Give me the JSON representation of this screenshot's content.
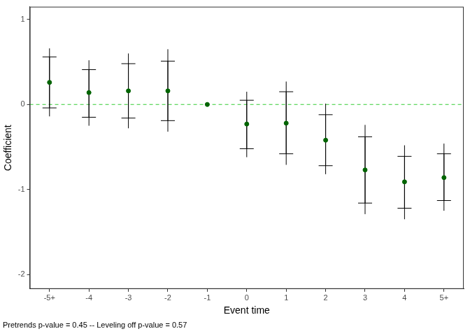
{
  "chart_data": {
    "type": "errorbar",
    "annotation": "Pretrends p-value = 0.45 -- Leveling off p-value = 0.57",
    "x_label": "Event time",
    "y_label": "Coefficient",
    "categories": [
      "-5+",
      "-4",
      "-3",
      "-2",
      "-1",
      "0",
      "1",
      "2",
      "3",
      "4",
      "5+"
    ],
    "values": [
      0.26,
      0.14,
      0.16,
      0.16,
      0,
      -0.23,
      -0.22,
      -0.42,
      -0.77,
      -0.91,
      -0.86
    ],
    "color": "#006400",
    "error_bars": {
      "inner": {
        "low": [
          -0.04,
          -0.15,
          -0.16,
          -0.19,
          null,
          -0.52,
          -0.58,
          -0.72,
          -1.16,
          -1.22,
          -1.13
        ],
        "high": [
          0.56,
          0.41,
          0.48,
          0.51,
          null,
          0.05,
          0.15,
          -0.12,
          -0.38,
          -0.61,
          -0.58
        ]
      },
      "outer": {
        "low": [
          -0.14,
          -0.25,
          -0.28,
          -0.32,
          null,
          -0.62,
          -0.71,
          -0.82,
          -1.29,
          -1.35,
          -1.25
        ],
        "high": [
          0.66,
          0.52,
          0.6,
          0.65,
          null,
          0.15,
          0.27,
          0.01,
          -0.24,
          -0.48,
          -0.46
        ]
      }
    },
    "reference_line": {
      "value": 0,
      "color": "#33cc33",
      "line_style": "dashed"
    },
    "ylim": [
      -2.17,
      1.15
    ],
    "yticks": [
      -2,
      -1,
      0,
      1
    ],
    "grid": false
  }
}
